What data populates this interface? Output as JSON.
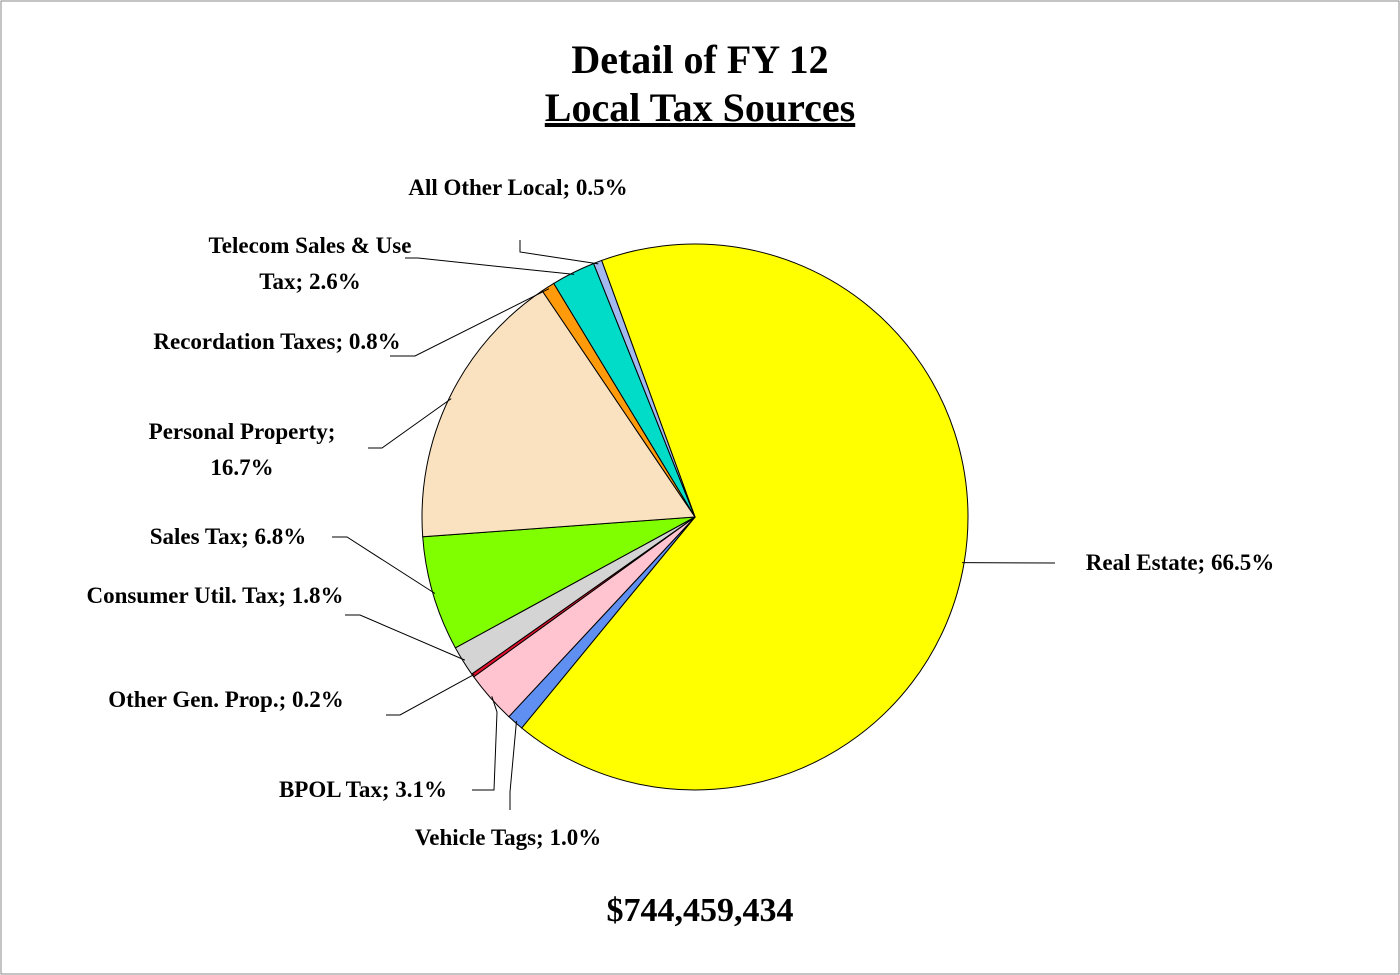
{
  "chart_data": {
    "type": "pie",
    "title": "Detail of FY 12",
    "subtitle": "Local Tax Sources",
    "categories": [
      "Real Estate;",
      "Vehicle Tags;",
      "BPOL Tax;",
      "Other Gen. Prop.;",
      "Consumer Util. Tax;",
      "Sales Tax;",
      "Personal Property;",
      "Recordation Taxes;",
      "Telecom Sales & Use Tax;",
      "All Other Local;"
    ],
    "values": [
      66.5,
      1.0,
      3.1,
      0.2,
      1.8,
      6.8,
      16.7,
      0.8,
      2.6,
      0.5
    ],
    "value_labels": [
      "66.5%",
      "1.0%",
      "3.1%",
      "0.2%",
      "1.8%",
      "6.8%",
      "16.7%",
      "0.8%",
      "2.6%",
      "0.5%"
    ],
    "colors": [
      "#ffff00",
      "#5f8ff0",
      "#ffc4d0",
      "#e0102c",
      "#d4d4d4",
      "#80ff00",
      "#fae2c0",
      "#ff9a0a",
      "#00dcc8",
      "#a4b8f0"
    ],
    "total": "$744,459,434"
  }
}
